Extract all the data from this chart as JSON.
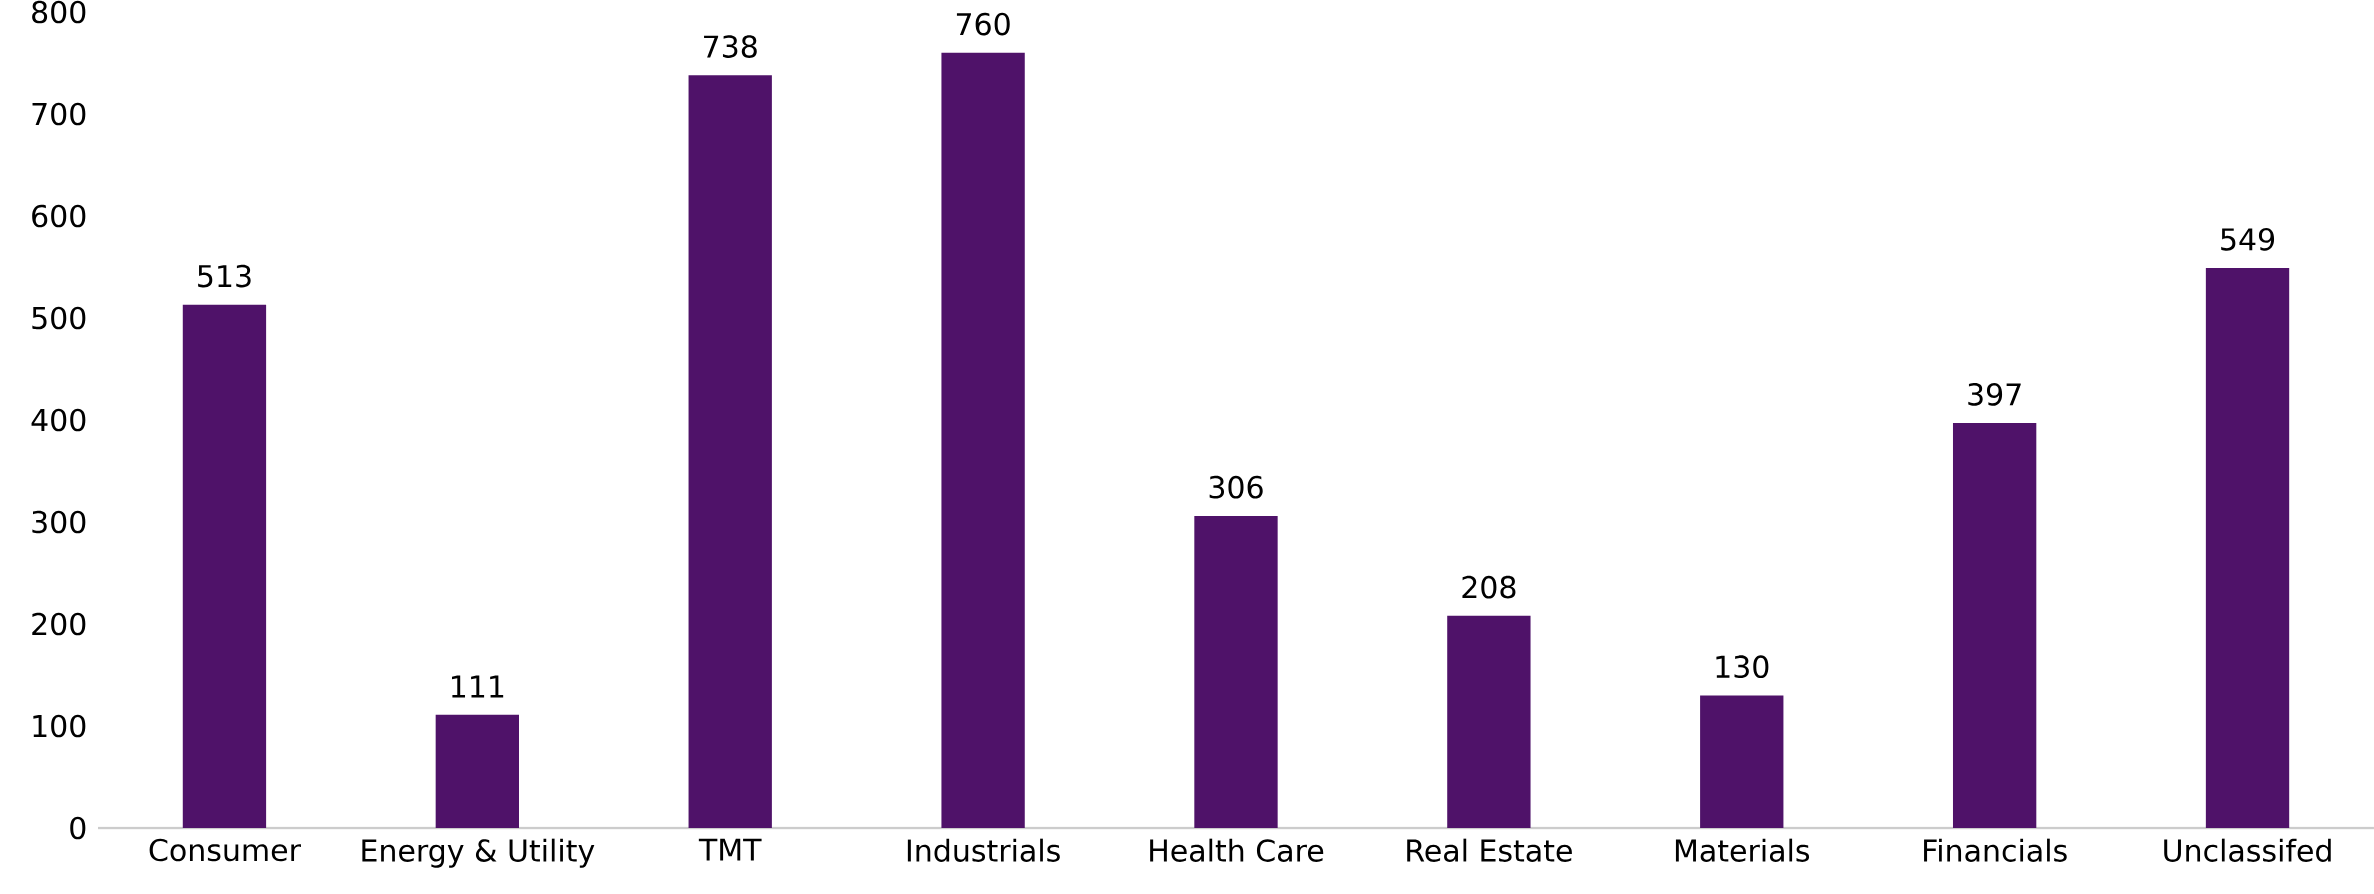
{
  "chart_data": {
    "type": "bar",
    "categories": [
      "Consumer",
      "Energy & Utility",
      "TMT",
      "Industrials",
      "Health Care",
      "Real Estate",
      "Materials",
      "Financials",
      "Unclassifed"
    ],
    "values": [
      513,
      111,
      738,
      760,
      306,
      208,
      130,
      397,
      549
    ],
    "color": "#4f1269",
    "ylim": [
      0,
      800
    ],
    "yticks": [
      0,
      100,
      200,
      300,
      400,
      500,
      600,
      700,
      800
    ],
    "data_labels": true
  }
}
